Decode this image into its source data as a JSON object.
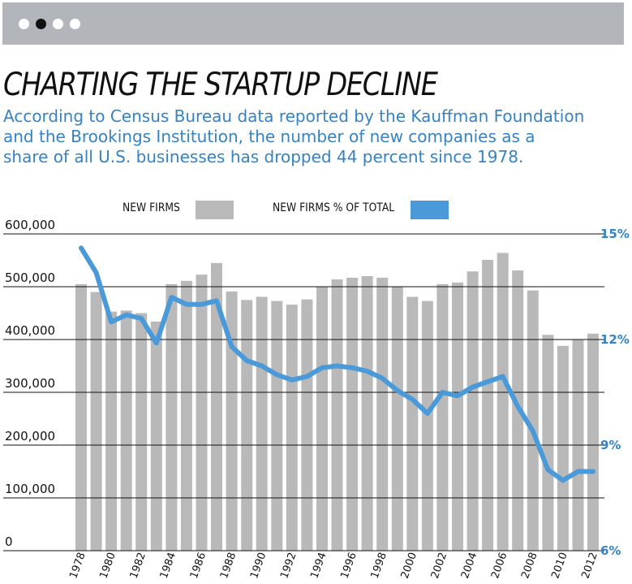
{
  "header": {
    "pager_dots": [
      {
        "name": "pager-dot-1",
        "active": false
      },
      {
        "name": "pager-dot-2",
        "active": true
      },
      {
        "name": "pager-dot-3",
        "active": false
      },
      {
        "name": "pager-dot-4",
        "active": false
      }
    ]
  },
  "headline": "CHARTING THE STARTUP DECLINE",
  "dek_lines": [
    "According to Census Bureau data reported by the Kauffman Foundation",
    "and the Brookings Institution, the number of new companies as a",
    "share of all U.S. businesses has dropped 44 percent since 1978."
  ],
  "colors": {
    "bar": "#b9b9b9",
    "line": "#4a9ad9",
    "accent_text": "#3582c4",
    "topbar": "#b2b5b9"
  },
  "chart_data": {
    "type": "bar",
    "title": "",
    "x": [
      1978,
      1979,
      1980,
      1981,
      1982,
      1983,
      1984,
      1985,
      1986,
      1987,
      1988,
      1989,
      1990,
      1991,
      1992,
      1993,
      1994,
      1995,
      1996,
      1997,
      1998,
      1999,
      2000,
      2001,
      2002,
      2003,
      2004,
      2005,
      2006,
      2007,
      2008,
      2009,
      2010,
      2011,
      2012
    ],
    "x_tick_labels": [
      "1978",
      "1980",
      "1982",
      "1984",
      "1986",
      "1988",
      "1990",
      "1992",
      "1994",
      "1996",
      "1998",
      "2000",
      "2002",
      "2004",
      "2006",
      "2008",
      "2010",
      "2012"
    ],
    "series": [
      {
        "name": "NEW FIRMS",
        "type": "bar",
        "axis": "left",
        "values": [
          505000,
          490000,
          453000,
          455000,
          450000,
          434000,
          505000,
          511000,
          523000,
          545000,
          491000,
          475000,
          481000,
          473000,
          466000,
          476000,
          500000,
          514000,
          517000,
          520000,
          517000,
          500000,
          481000,
          473000,
          505000,
          508000,
          529000,
          551000,
          564000,
          531000,
          493000,
          409000,
          388000,
          400000,
          411000
        ]
      },
      {
        "name": "NEW FIRMS % OF TOTAL",
        "type": "line",
        "axis": "right",
        "values": [
          14.6,
          13.9,
          12.5,
          12.7,
          12.6,
          11.9,
          13.2,
          13.0,
          13.0,
          13.1,
          11.8,
          11.4,
          11.25,
          11.0,
          10.85,
          10.95,
          11.2,
          11.25,
          11.2,
          11.1,
          10.9,
          10.55,
          10.3,
          9.9,
          10.5,
          10.4,
          10.65,
          10.8,
          10.95,
          10.1,
          9.4,
          8.3,
          8.0,
          8.25,
          8.25
        ]
      }
    ],
    "y_left": {
      "lim": [
        0,
        600000
      ],
      "ticks": [
        0,
        100000,
        200000,
        300000,
        400000,
        500000,
        600000
      ],
      "tick_labels": [
        "0",
        "100,000",
        "200,000",
        "300,000",
        "400,000",
        "500,000",
        "600,000"
      ]
    },
    "y_right": {
      "lim": [
        6,
        15
      ],
      "ticks": [
        6,
        9,
        12,
        15
      ],
      "tick_labels": [
        "6%",
        "9%",
        "12%",
        "15%"
      ]
    },
    "grid": true,
    "legend_position": "top"
  }
}
